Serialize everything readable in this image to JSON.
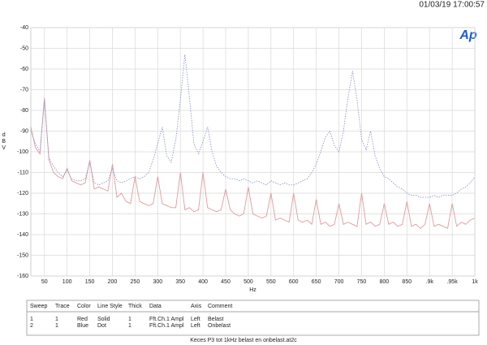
{
  "header": {
    "timestamp": "01/03/19 17:00:57",
    "logo": "Ap"
  },
  "chart_data": {
    "type": "line",
    "y_label": "dBV",
    "x_label": "Hz",
    "grid": true,
    "xlim": [
      20,
      1000
    ],
    "ylim": [
      -160,
      -40
    ],
    "xticks": [
      50,
      100,
      150,
      200,
      250,
      300,
      350,
      400,
      450,
      500,
      550,
      600,
      650,
      700,
      750,
      800,
      850,
      {
        "value": 900,
        "label": ".9k"
      },
      {
        "value": 950,
        "label": ".95k"
      },
      {
        "value": 1000,
        "label": "1k"
      }
    ],
    "yticks": [
      -40,
      -50,
      -60,
      -70,
      -80,
      -90,
      -100,
      -110,
      -120,
      -130,
      -140,
      -150,
      -160
    ],
    "x": [
      20,
      30,
      40,
      50,
      60,
      70,
      80,
      90,
      100,
      110,
      120,
      130,
      140,
      150,
      160,
      170,
      180,
      190,
      200,
      210,
      220,
      230,
      240,
      250,
      260,
      270,
      280,
      290,
      300,
      310,
      320,
      330,
      340,
      350,
      360,
      370,
      380,
      390,
      400,
      410,
      420,
      430,
      440,
      450,
      460,
      470,
      480,
      490,
      500,
      510,
      520,
      530,
      540,
      550,
      560,
      570,
      580,
      590,
      600,
      610,
      620,
      630,
      640,
      650,
      660,
      670,
      680,
      690,
      700,
      710,
      720,
      730,
      740,
      750,
      760,
      770,
      780,
      790,
      800,
      810,
      820,
      830,
      840,
      850,
      860,
      870,
      880,
      890,
      900,
      910,
      920,
      930,
      940,
      950,
      960,
      970,
      980,
      990,
      1000
    ],
    "series": [
      {
        "name": "Belast",
        "color": "#e39a9a",
        "dash": "solid",
        "values": [
          -88,
          -98,
          -101,
          -74,
          -104,
          -110,
          -112,
          -113,
          -108,
          -114,
          -115,
          -116,
          -115,
          -104,
          -118,
          -117,
          -118,
          -119,
          -106,
          -122,
          -120,
          -124,
          -125,
          -112,
          -124,
          -125,
          -126,
          -125,
          -112,
          -125,
          -126,
          -127,
          -127,
          -110,
          -128,
          -127,
          -129,
          -128,
          -110,
          -127,
          -128,
          -129,
          -128,
          -118,
          -128,
          -130,
          -131,
          -130,
          -117,
          -130,
          -131,
          -132,
          -131,
          -120,
          -133,
          -132,
          -133,
          -134,
          -120,
          -133,
          -134,
          -133,
          -135,
          -123,
          -135,
          -134,
          -136,
          -135,
          -125,
          -135,
          -134,
          -135,
          -136,
          -120,
          -135,
          -134,
          -136,
          -135,
          -125,
          -135,
          -134,
          -136,
          -135,
          -124,
          -136,
          -135,
          -137,
          -135,
          -125,
          -136,
          -135,
          -136,
          -137,
          -125,
          -136,
          -134,
          -135,
          -133,
          -132
        ]
      },
      {
        "name": "Onbelast",
        "color": "#8f96d4",
        "dash": "dotted",
        "values": [
          -90,
          -96,
          -100,
          -75,
          -103,
          -107,
          -110,
          -112,
          -109,
          -113,
          -114,
          -114,
          -113,
          -105,
          -115,
          -116,
          -115,
          -114,
          -108,
          -114,
          -115,
          -114,
          -113,
          -112,
          -113,
          -112,
          -110,
          -104,
          -96,
          -88,
          -102,
          -105,
          -94,
          -75,
          -53,
          -74,
          -96,
          -101,
          -95,
          -88,
          -100,
          -107,
          -110,
          -112,
          -113,
          -113,
          -114,
          -113,
          -114,
          -115,
          -114,
          -115,
          -116,
          -114,
          -115,
          -116,
          -115,
          -116,
          -116,
          -115,
          -114,
          -113,
          -110,
          -106,
          -100,
          -93,
          -90,
          -97,
          -100,
          -90,
          -74,
          -61,
          -75,
          -94,
          -99,
          -90,
          -102,
          -108,
          -112,
          -113,
          -115,
          -117,
          -118,
          -120,
          -121,
          -121,
          -122,
          -122,
          -122,
          -121,
          -122,
          -121,
          -121,
          -121,
          -120,
          -118,
          -117,
          -115,
          -112
        ]
      }
    ]
  },
  "table": {
    "columns": [
      "Sweep",
      "Trace",
      "Color",
      "Line Style",
      "Thick",
      "Data",
      "Axis",
      "Comment"
    ],
    "rows": [
      [
        "1",
        "1",
        "Red",
        "Solid",
        "1",
        "Fft.Ch.1 Ampl",
        "Left",
        "Belast"
      ],
      [
        "2",
        "1",
        "Blue",
        "Dot",
        "1",
        "Fft.Ch.1 Ampl",
        "Left",
        "Onbelast"
      ]
    ]
  },
  "footer": "Keces P3 tot 1kHz belast en onbelast.at2c"
}
